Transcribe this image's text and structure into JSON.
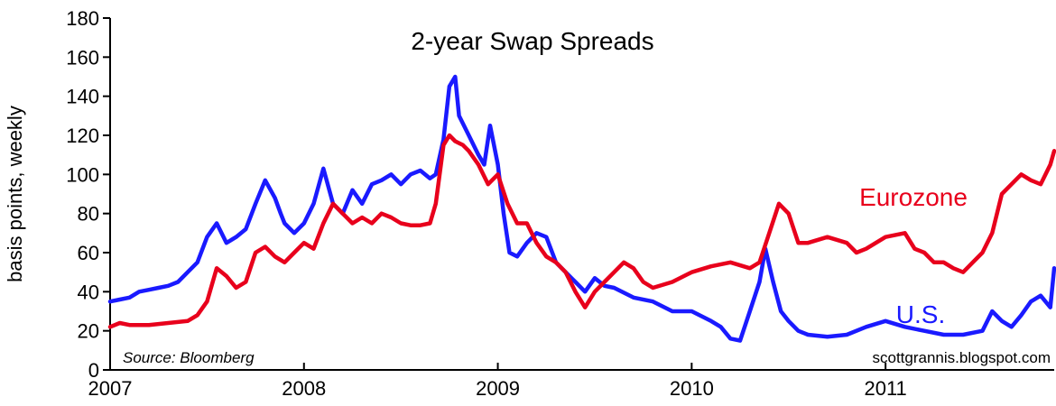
{
  "chart_data": {
    "type": "line",
    "title": "2-year Swap Spreads",
    "ylabel": "basis points, weekly",
    "xlabel": "",
    "source": "Source: Bloomberg",
    "credit": "scottgrannis.blogspot.com",
    "xlim": [
      2007.0,
      2011.87
    ],
    "ylim": [
      0,
      180
    ],
    "grid": false,
    "y_ticks": [
      0,
      20,
      40,
      60,
      80,
      100,
      120,
      140,
      160,
      180
    ],
    "y_tick_labels": [
      "0",
      "20",
      "40",
      "60",
      "80",
      "100",
      "120",
      "140",
      "160",
      "180"
    ],
    "x_ticks": [
      2007,
      2008,
      2009,
      2010,
      2011
    ],
    "x_tick_labels": [
      "2007",
      "2008",
      "2009",
      "2010",
      "2011"
    ],
    "colors": {
      "us": "#1a1aff",
      "eurozone": "#e8001c"
    },
    "series": [
      {
        "name": "U.S.",
        "key": "us",
        "x": [
          2007.0,
          2007.05,
          2007.1,
          2007.15,
          2007.2,
          2007.25,
          2007.3,
          2007.35,
          2007.4,
          2007.45,
          2007.5,
          2007.55,
          2007.6,
          2007.65,
          2007.7,
          2007.75,
          2007.8,
          2007.85,
          2007.88,
          2007.9,
          2007.95,
          2008.0,
          2008.05,
          2008.1,
          2008.15,
          2008.2,
          2008.25,
          2008.3,
          2008.35,
          2008.4,
          2008.45,
          2008.5,
          2008.55,
          2008.6,
          2008.65,
          2008.68,
          2008.72,
          2008.75,
          2008.78,
          2008.8,
          2008.85,
          2008.9,
          2008.93,
          2008.96,
          2009.0,
          2009.03,
          2009.06,
          2009.1,
          2009.15,
          2009.2,
          2009.25,
          2009.3,
          2009.35,
          2009.4,
          2009.45,
          2009.5,
          2009.55,
          2009.6,
          2009.7,
          2009.8,
          2009.9,
          2010.0,
          2010.1,
          2010.15,
          2010.2,
          2010.25,
          2010.3,
          2010.35,
          2010.38,
          2010.42,
          2010.46,
          2010.5,
          2010.55,
          2010.6,
          2010.7,
          2010.8,
          2010.9,
          2011.0,
          2011.1,
          2011.2,
          2011.3,
          2011.4,
          2011.5,
          2011.55,
          2011.6,
          2011.65,
          2011.7,
          2011.75,
          2011.8,
          2011.85,
          2011.87
        ],
        "values": [
          35,
          36,
          37,
          40,
          41,
          42,
          43,
          45,
          50,
          55,
          68,
          75,
          65,
          68,
          72,
          85,
          97,
          88,
          80,
          75,
          70,
          75,
          85,
          103,
          85,
          80,
          92,
          85,
          95,
          97,
          100,
          95,
          100,
          102,
          98,
          100,
          118,
          145,
          150,
          130,
          120,
          110,
          105,
          125,
          105,
          80,
          60,
          58,
          65,
          70,
          68,
          55,
          50,
          45,
          40,
          47,
          43,
          42,
          37,
          35,
          30,
          30,
          25,
          22,
          16,
          15,
          30,
          45,
          62,
          45,
          30,
          25,
          20,
          18,
          17,
          18,
          22,
          25,
          22,
          20,
          18,
          18,
          20,
          30,
          25,
          22,
          28,
          35,
          38,
          32,
          52
        ]
      },
      {
        "name": "Eurozone",
        "key": "eurozone",
        "x": [
          2007.0,
          2007.05,
          2007.1,
          2007.2,
          2007.3,
          2007.4,
          2007.45,
          2007.5,
          2007.55,
          2007.6,
          2007.65,
          2007.7,
          2007.75,
          2007.8,
          2007.85,
          2007.9,
          2007.95,
          2008.0,
          2008.05,
          2008.1,
          2008.15,
          2008.2,
          2008.25,
          2008.3,
          2008.35,
          2008.4,
          2008.45,
          2008.5,
          2008.55,
          2008.6,
          2008.65,
          2008.68,
          2008.72,
          2008.75,
          2008.78,
          2008.82,
          2008.85,
          2008.9,
          2008.95,
          2009.0,
          2009.05,
          2009.1,
          2009.15,
          2009.2,
          2009.25,
          2009.3,
          2009.35,
          2009.4,
          2009.45,
          2009.5,
          2009.55,
          2009.6,
          2009.65,
          2009.7,
          2009.75,
          2009.8,
          2009.9,
          2010.0,
          2010.1,
          2010.2,
          2010.3,
          2010.35,
          2010.4,
          2010.45,
          2010.5,
          2010.55,
          2010.6,
          2010.7,
          2010.8,
          2010.85,
          2010.9,
          2011.0,
          2011.1,
          2011.15,
          2011.2,
          2011.25,
          2011.3,
          2011.35,
          2011.4,
          2011.45,
          2011.5,
          2011.55,
          2011.6,
          2011.65,
          2011.7,
          2011.75,
          2011.8,
          2011.85,
          2011.87
        ],
        "values": [
          22,
          24,
          23,
          23,
          24,
          25,
          28,
          35,
          52,
          48,
          42,
          45,
          60,
          63,
          58,
          55,
          60,
          65,
          62,
          75,
          85,
          80,
          75,
          78,
          75,
          80,
          78,
          75,
          74,
          74,
          75,
          85,
          115,
          120,
          117,
          115,
          112,
          105,
          95,
          100,
          85,
          75,
          75,
          65,
          58,
          55,
          50,
          40,
          32,
          40,
          45,
          50,
          55,
          52,
          45,
          42,
          45,
          50,
          53,
          55,
          52,
          55,
          70,
          85,
          80,
          65,
          65,
          68,
          65,
          60,
          62,
          68,
          70,
          62,
          60,
          55,
          55,
          52,
          50,
          55,
          60,
          70,
          90,
          95,
          100,
          97,
          95,
          105,
          112
        ]
      }
    ],
    "annotations": [
      {
        "series": "eurozone",
        "text": "Eurozone"
      },
      {
        "series": "us",
        "text": "U.S."
      }
    ]
  }
}
